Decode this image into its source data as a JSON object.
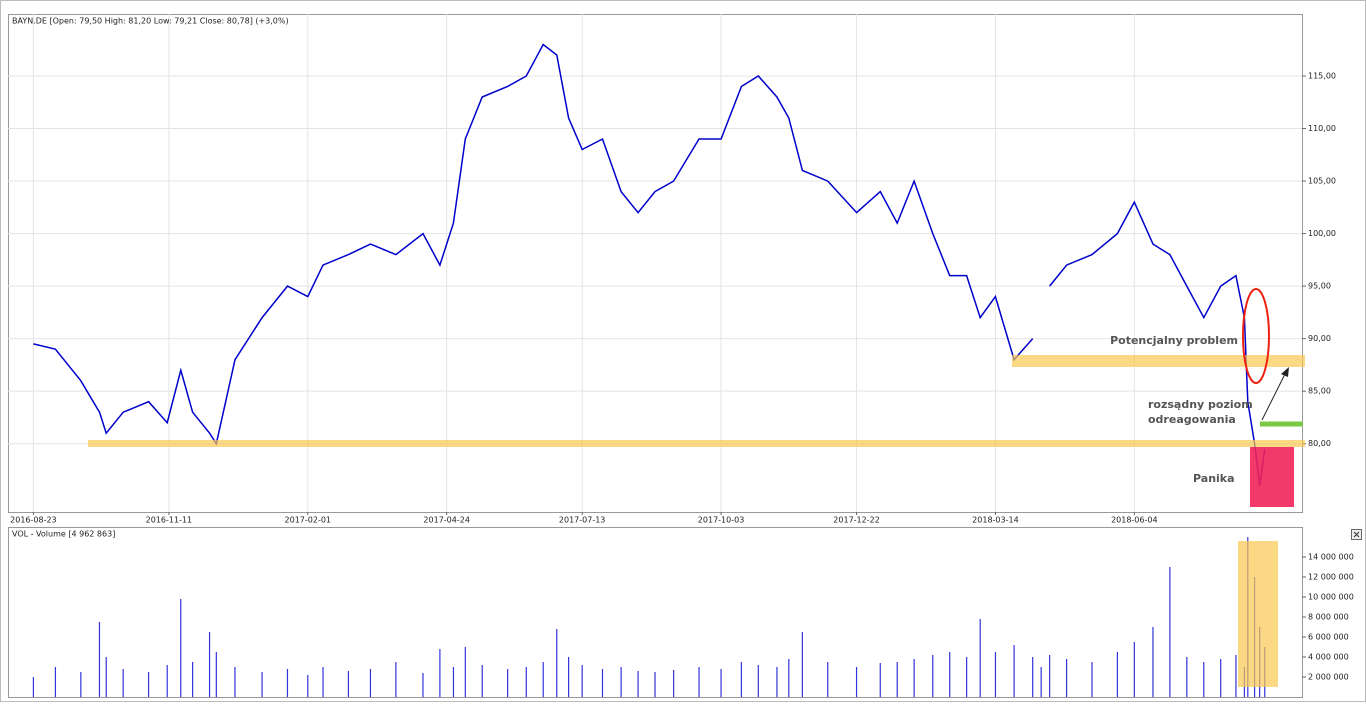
{
  "chart_data": [
    {
      "type": "line",
      "title": "BAYN.DE [Open: 79,50  High: 81,20  Low: 79,21  Close: 80,78] (+3,0%)",
      "color": "#0000cc",
      "grid": true,
      "annotations": [
        "Potencjalny problem",
        "rozsądny poziom",
        "odreagowania",
        "Panika"
      ],
      "xlim": [
        "2016-08-08",
        "2018-09-11"
      ],
      "xticks": [
        "2016-08-23",
        "2016-11-11",
        "2017-02-01",
        "2017-04-24",
        "2017-07-13",
        "2017-10-03",
        "2017-12-22",
        "2018-03-14",
        "2018-06-04"
      ],
      "ylim": [
        73.5,
        120.9
      ],
      "yticks": [
        {
          "value": 80,
          "label": "80,00"
        },
        {
          "value": 85,
          "label": "85,00"
        },
        {
          "value": 90,
          "label": "90,00"
        },
        {
          "value": 95,
          "label": "95,00"
        },
        {
          "value": 100,
          "label": "100,00"
        },
        {
          "value": 105,
          "label": "105,00"
        },
        {
          "value": 110,
          "label": "110,00"
        },
        {
          "value": 115,
          "label": "115,00"
        }
      ],
      "x": [
        "2016-08-23",
        "2016-09-05",
        "2016-09-20",
        "2016-10-01",
        "2016-10-05",
        "2016-10-15",
        "2016-10-30",
        "2016-11-10",
        "2016-11-18",
        "2016-11-25",
        "2016-12-05",
        "2016-12-09",
        "2016-12-20",
        "2017-01-05",
        "2017-01-20",
        "2017-02-01",
        "2017-02-10",
        "2017-02-25",
        "2017-03-10",
        "2017-03-25",
        "2017-04-10",
        "2017-04-20",
        "2017-04-28",
        "2017-05-05",
        "2017-05-15",
        "2017-05-30",
        "2017-06-10",
        "2017-06-20",
        "2017-06-28",
        "2017-07-05",
        "2017-07-13",
        "2017-07-25",
        "2017-08-05",
        "2017-08-15",
        "2017-08-25",
        "2017-09-05",
        "2017-09-20",
        "2017-10-03",
        "2017-10-15",
        "2017-10-25",
        "2017-11-05",
        "2017-11-12",
        "2017-11-20",
        "2017-12-05",
        "2017-12-22",
        "2018-01-05",
        "2018-01-15",
        "2018-01-25",
        "2018-02-05",
        "2018-02-15",
        "2018-02-25",
        "2018-03-05",
        "2018-03-14",
        "2018-03-25",
        "2018-04-05",
        "2018-04-10",
        "2018-04-15",
        "2018-04-25",
        "2018-05-10",
        "2018-05-25",
        "2018-06-04",
        "2018-06-15",
        "2018-06-25",
        "2018-07-05",
        "2018-07-15",
        "2018-07-25",
        "2018-08-03",
        "2018-08-08",
        "2018-08-10",
        "2018-08-14",
        "2018-08-17",
        "2018-08-20"
      ],
      "values": [
        89.5,
        89,
        86,
        83,
        81,
        83,
        84,
        82,
        87,
        83,
        81,
        80,
        88,
        92,
        95,
        94,
        97,
        98,
        99,
        98,
        100,
        97,
        101,
        109,
        113,
        114,
        115,
        118,
        117,
        111,
        108,
        109,
        104,
        102,
        104,
        105,
        109,
        109,
        114,
        115,
        113,
        111,
        106,
        105,
        102,
        104,
        101,
        105,
        100,
        96,
        96,
        92,
        94,
        88,
        90,
        null,
        95,
        97,
        98,
        100,
        103,
        99,
        98,
        95,
        92,
        95,
        96,
        92,
        84,
        80,
        76,
        79.5
      ]
    },
    {
      "type": "bar",
      "title": "VOL - Volume [4 962 863]",
      "color": "#3333dd",
      "grid": false,
      "xlim": [
        "2016-08-08",
        "2018-09-11"
      ],
      "ylim": [
        0,
        17000000
      ],
      "yticks": [
        {
          "value": 2000000,
          "label": "2 000 000"
        },
        {
          "value": 4000000,
          "label": "4 000 000"
        },
        {
          "value": 6000000,
          "label": "6 000 000"
        },
        {
          "value": 8000000,
          "label": "8 000 000"
        },
        {
          "value": 10000000,
          "label": "10 000 000"
        },
        {
          "value": 12000000,
          "label": "12 000 000"
        },
        {
          "value": 14000000,
          "label": "14 000 000"
        }
      ],
      "x": [
        "2016-08-23",
        "2016-09-05",
        "2016-09-20",
        "2016-10-01",
        "2016-10-05",
        "2016-10-15",
        "2016-10-30",
        "2016-11-10",
        "2016-11-18",
        "2016-11-25",
        "2016-12-05",
        "2016-12-09",
        "2016-12-20",
        "2017-01-05",
        "2017-01-20",
        "2017-02-01",
        "2017-02-10",
        "2017-02-25",
        "2017-03-10",
        "2017-03-25",
        "2017-04-10",
        "2017-04-20",
        "2017-04-28",
        "2017-05-05",
        "2017-05-15",
        "2017-05-30",
        "2017-06-10",
        "2017-06-20",
        "2017-06-28",
        "2017-07-05",
        "2017-07-13",
        "2017-07-25",
        "2017-08-05",
        "2017-08-15",
        "2017-08-25",
        "2017-09-05",
        "2017-09-20",
        "2017-10-03",
        "2017-10-15",
        "2017-10-25",
        "2017-11-05",
        "2017-11-12",
        "2017-11-20",
        "2017-12-05",
        "2017-12-22",
        "2018-01-05",
        "2018-01-15",
        "2018-01-25",
        "2018-02-05",
        "2018-02-15",
        "2018-02-25",
        "2018-03-05",
        "2018-03-14",
        "2018-03-25",
        "2018-04-05",
        "2018-04-10",
        "2018-04-15",
        "2018-04-25",
        "2018-05-10",
        "2018-05-25",
        "2018-06-04",
        "2018-06-15",
        "2018-06-25",
        "2018-07-05",
        "2018-07-15",
        "2018-07-25",
        "2018-08-03",
        "2018-08-08",
        "2018-08-10",
        "2018-08-14",
        "2018-08-17",
        "2018-08-20"
      ],
      "values": [
        2000000,
        3000000,
        2500000,
        7500000,
        4000000,
        2800000,
        2500000,
        3200000,
        9800000,
        3500000,
        6500000,
        4500000,
        3000000,
        2500000,
        2800000,
        2200000,
        3000000,
        2600000,
        2800000,
        3500000,
        2400000,
        4800000,
        3000000,
        5000000,
        3200000,
        2800000,
        3000000,
        3500000,
        6800000,
        4000000,
        3200000,
        2800000,
        3000000,
        2600000,
        2500000,
        2700000,
        3000000,
        2800000,
        3500000,
        3200000,
        3000000,
        3800000,
        6500000,
        3500000,
        3000000,
        3400000,
        3500000,
        3800000,
        4200000,
        4500000,
        4000000,
        7800000,
        4500000,
        5200000,
        4000000,
        3000000,
        4200000,
        3800000,
        3500000,
        4500000,
        5500000,
        7000000,
        13000000,
        4000000,
        3500000,
        3800000,
        4200000,
        3000000,
        16000000,
        12000000,
        7000000,
        5000000
      ]
    }
  ]
}
